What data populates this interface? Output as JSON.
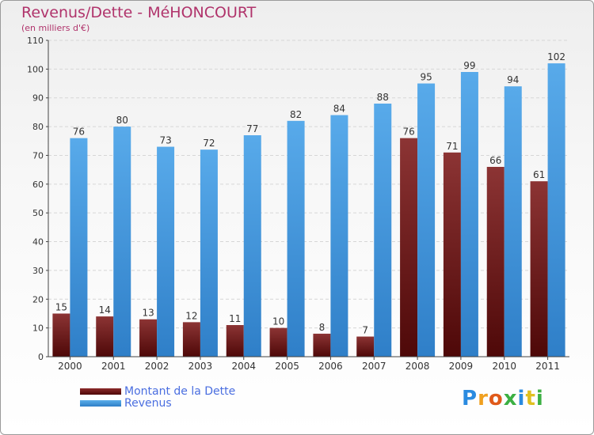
{
  "header": {
    "title": "Revenus/Dette - MéHONCOURT",
    "subtitle": "(en milliers d'€)"
  },
  "legend": {
    "dette_label": "Montant de la Dette",
    "revenus_label": "Revenus"
  },
  "logo": {
    "text": "Proxiti"
  },
  "colors": {
    "dette": "#7a1f1f",
    "revenus": "#4a9fe0",
    "title": "#b0336b",
    "legend_text": "#4a6ee0"
  },
  "chart_data": {
    "type": "bar",
    "title": "Revenus/Dette - MéHONCOURT",
    "subtitle": "(en milliers d'€)",
    "xlabel": "",
    "ylabel": "",
    "ylim": [
      0,
      110
    ],
    "yticks": [
      0,
      10,
      20,
      30,
      40,
      50,
      60,
      70,
      80,
      90,
      100,
      110
    ],
    "grid": true,
    "categories": [
      "2000",
      "2001",
      "2002",
      "2003",
      "2004",
      "2005",
      "2006",
      "2007",
      "2008",
      "2009",
      "2010",
      "2011"
    ],
    "series": [
      {
        "name": "Montant de la Dette",
        "values": [
          15,
          14,
          13,
          12,
          11,
          10,
          8,
          7,
          76,
          71,
          66,
          61
        ]
      },
      {
        "name": "Revenus",
        "values": [
          76,
          80,
          73,
          72,
          77,
          82,
          84,
          88,
          95,
          99,
          94,
          102
        ]
      }
    ],
    "legend_position": "bottom-left"
  }
}
